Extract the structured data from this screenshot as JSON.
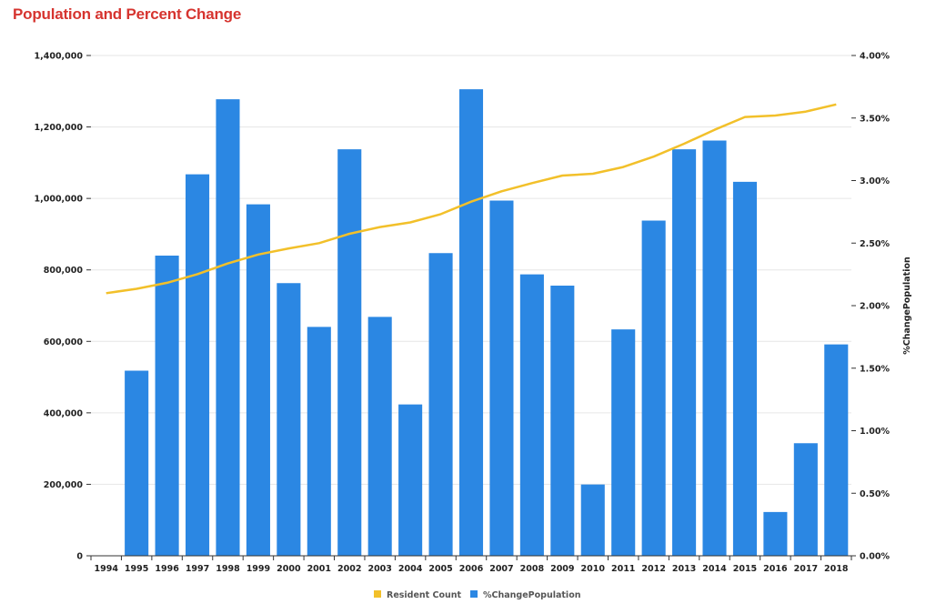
{
  "page": {
    "title": "Population and Percent Change"
  },
  "chart_data": {
    "type": "bar",
    "categories": [
      "1994",
      "1995",
      "1996",
      "1997",
      "1998",
      "1999",
      "2000",
      "2001",
      "2002",
      "2003",
      "2004",
      "2005",
      "2006",
      "2007",
      "2008",
      "2009",
      "2010",
      "2011",
      "2012",
      "2013",
      "2014",
      "2015",
      "2016",
      "2017",
      "2018"
    ],
    "series": [
      {
        "name": "%ChangePopulation",
        "type": "bar",
        "axis": "right",
        "color": "#2b87e3",
        "values": [
          null,
          1.48,
          2.4,
          3.05,
          3.65,
          2.81,
          2.18,
          1.83,
          3.25,
          1.91,
          1.21,
          2.42,
          3.73,
          2.84,
          2.25,
          2.16,
          0.57,
          1.81,
          2.68,
          3.25,
          3.32,
          2.99,
          0.35,
          0.9,
          1.69
        ]
      },
      {
        "name": "Resident Count",
        "type": "line",
        "axis": "left",
        "color": "#f2c02a",
        "values": [
          735000,
          747000,
          764000,
          788000,
          818000,
          843000,
          860000,
          875000,
          901000,
          920000,
          933000,
          956000,
          991000,
          1020000,
          1043000,
          1064000,
          1069000,
          1088000,
          1117000,
          1153000,
          1192000,
          1228000,
          1232000,
          1243000,
          1263000
        ]
      }
    ],
    "y_left": {
      "min": 0,
      "max": 1400000,
      "ticks": [
        0,
        200000,
        400000,
        600000,
        800000,
        1000000,
        1200000,
        1400000
      ],
      "tick_labels": [
        "0",
        "200,000",
        "400,000",
        "600,000",
        "800,000",
        "1,000,000",
        "1,200,000",
        "1,400,000"
      ]
    },
    "y_right": {
      "min": 0,
      "max": 4,
      "ticks": [
        0,
        0.5,
        1,
        1.5,
        2,
        2.5,
        3,
        3.5,
        4
      ],
      "tick_labels": [
        "0.00%",
        "0.50%",
        "1.00%",
        "1.50%",
        "2.00%",
        "2.50%",
        "3.00%",
        "3.50%",
        "4.00%"
      ],
      "label": "%ChangePopulation"
    },
    "grid": true,
    "legend": {
      "position": "bottom-center",
      "entries": [
        {
          "label": "Resident Count",
          "color": "#f2c02a"
        },
        {
          "label": "%ChangePopulation",
          "color": "#2b87e3"
        }
      ]
    }
  }
}
